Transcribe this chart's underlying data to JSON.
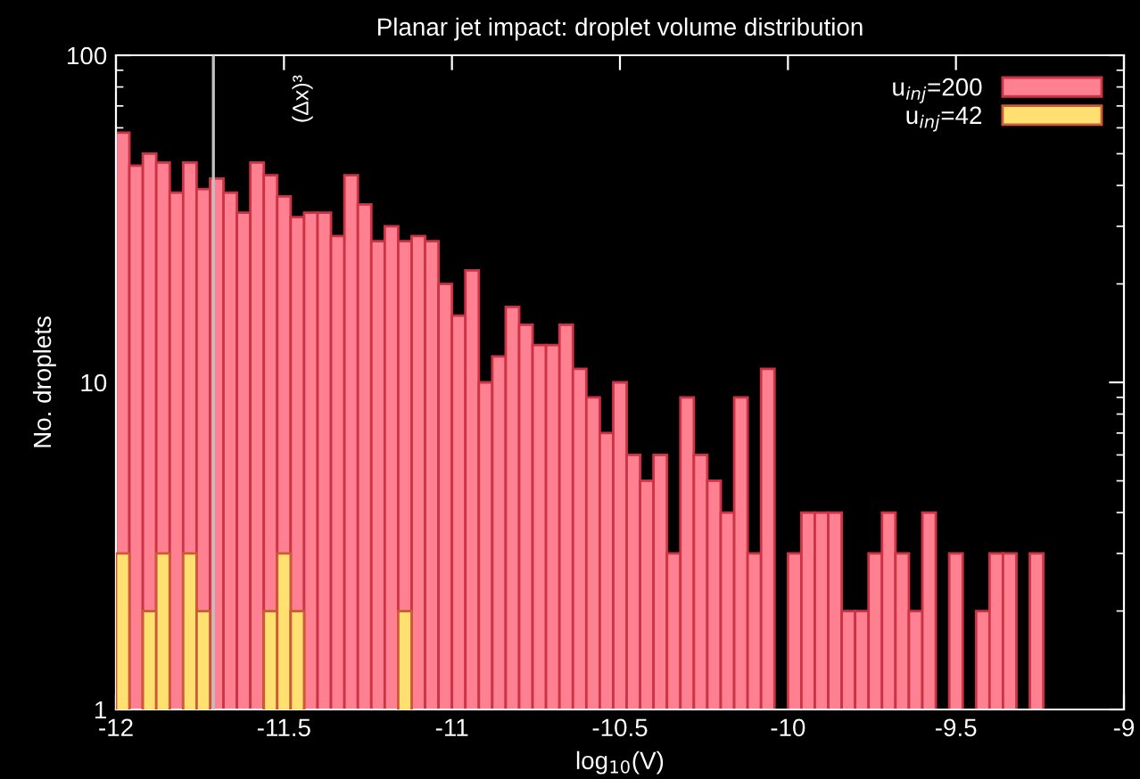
{
  "chart_data": {
    "type": "histogram",
    "title": "Planar jet impact: droplet volume distribution",
    "xlabel": "log$_{10}$(V)",
    "ylabel": "No. droplets",
    "bins": [
      -12,
      -11.96,
      -11.92,
      -11.88,
      -11.84,
      -11.8,
      -11.76,
      -11.72,
      -11.68,
      -11.64,
      -11.6,
      -11.56,
      -11.52,
      -11.48,
      -11.44,
      -11.4,
      -11.36,
      -11.32,
      -11.28,
      -11.24,
      -11.2,
      -11.16,
      -11.12,
      -11.08,
      -11.04,
      -11,
      -10.96,
      -10.92,
      -10.88,
      -10.84,
      -10.8,
      -10.76,
      -10.72,
      -10.68,
      -10.64,
      -10.6,
      -10.56,
      -10.52,
      -10.48,
      -10.44,
      -10.4,
      -10.36,
      -10.32,
      -10.28,
      -10.24,
      -10.2,
      -10.16,
      -10.12,
      -10.08,
      -10.04,
      -10,
      -9.96,
      -9.92,
      -9.88,
      -9.84,
      -9.8,
      -9.76,
      -9.72,
      -9.68,
      -9.64,
      -9.6,
      -9.56,
      -9.52,
      -9.48,
      -9.44,
      -9.4,
      -9.36,
      -9.32,
      -9.28,
      -9.24
    ],
    "series": [
      {
        "name": "u$_{inj}$=200",
        "color": "#ff8090",
        "values": [
          58,
          46,
          50,
          47,
          38,
          47,
          39,
          42,
          38,
          33,
          47,
          43,
          37,
          32,
          33,
          33,
          28,
          43,
          35,
          27,
          30,
          27,
          28,
          27,
          20,
          16,
          22,
          10,
          12,
          17,
          15,
          13,
          13,
          15,
          11,
          9,
          7,
          10,
          6,
          5,
          6,
          3,
          9,
          6,
          5,
          4,
          9,
          3,
          11,
          null,
          3,
          4,
          4,
          4,
          2,
          2,
          3,
          4,
          3,
          2,
          4,
          null,
          3,
          null,
          2,
          3,
          3,
          null,
          3
        ]
      },
      {
        "name": "u$_{inj}$=42",
        "color": "#ffe070",
        "values": [
          3,
          null,
          2,
          3,
          null,
          3,
          2,
          null,
          null,
          null,
          null,
          2,
          3,
          2,
          null,
          null,
          null,
          null,
          null,
          null,
          null,
          2,
          null,
          null,
          null,
          null,
          null,
          null,
          null,
          null,
          null,
          null,
          null,
          null,
          null,
          null,
          null,
          null,
          null,
          null,
          null,
          null,
          null,
          null,
          null,
          null,
          null,
          null,
          null,
          null,
          null,
          null,
          null,
          null,
          null,
          null,
          null,
          null,
          null,
          null,
          null,
          null,
          null,
          null,
          null,
          null,
          null,
          null,
          null
        ]
      }
    ],
    "log": "y",
    "xlim": [
      -12,
      -9
    ],
    "ylim": [
      1,
      100
    ],
    "xticks": [
      {
        "value": -12,
        "label": "-12"
      },
      {
        "value": -11.5,
        "label": "-11.5"
      },
      {
        "value": -11,
        "label": "-11"
      },
      {
        "value": -10.5,
        "label": "-10.5"
      },
      {
        "value": -10,
        "label": "-10"
      },
      {
        "value": -9.5,
        "label": "-9.5"
      },
      {
        "value": -9,
        "label": "-9"
      }
    ],
    "yticks": [
      1,
      10,
      100
    ],
    "ref_lines": [
      {
        "axis": "x",
        "value": -11.71,
        "color": "#c0c0c0"
      }
    ],
    "annotations": [
      "(Δx)³"
    ],
    "legend": "top right",
    "grid": false
  }
}
